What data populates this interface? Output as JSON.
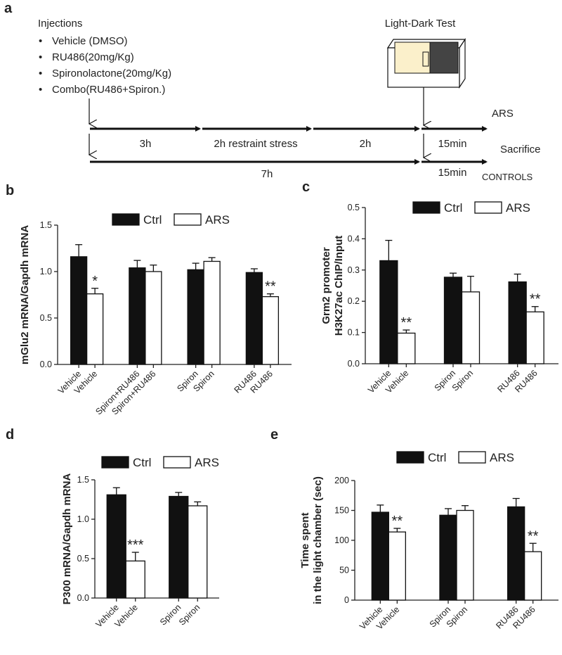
{
  "panel_a": {
    "panel_label": "a",
    "heading": "Injections",
    "items": [
      "Vehicle (DMSO)",
      "RU486(20mg/Kg)",
      "Spironolactone(20mg/Kg)",
      "Combo(RU486+Spiron.)"
    ],
    "test_label": "Light-Dark Test",
    "top_row": {
      "segments": [
        "3h",
        "2h restraint stress",
        "2h",
        "15min"
      ],
      "end_label": "ARS"
    },
    "side_label": "Sacrifice",
    "bottom_row": {
      "segments": [
        "7h",
        "15min"
      ],
      "end_label": "CONTROLS"
    }
  },
  "chart_data": [
    {
      "type": "bar",
      "panel_label": "b",
      "ylabel": [
        "mGlu2 mRNA/Gapdh mRNA"
      ],
      "categories": [
        "Vehicle",
        "Spiron+RU486",
        "Spiron",
        "RU486"
      ],
      "series": [
        {
          "name": "Ctrl",
          "color": "#111111",
          "values": [
            1.16,
            1.04,
            1.02,
            0.99
          ],
          "errors": [
            0.13,
            0.08,
            0.07,
            0.04
          ],
          "significance": [
            null,
            null,
            null,
            null
          ]
        },
        {
          "name": "ARS",
          "color": "#ffffff",
          "values": [
            0.76,
            1.0,
            1.11,
            0.73
          ],
          "errors": [
            0.06,
            0.07,
            0.04,
            0.03
          ],
          "significance": [
            "*",
            null,
            null,
            "**"
          ]
        }
      ],
      "ylim": [
        0,
        1.5
      ],
      "yticks": [
        {
          "value": 0,
          "label": "0.0"
        },
        0.5,
        {
          "value": 1,
          "label": "1.0"
        },
        1.5
      ],
      "legend": "top"
    },
    {
      "type": "bar",
      "panel_label": "c",
      "ylabel": [
        "Grm2 promoter",
        "H3K27ac ChIP/Input"
      ],
      "categories": [
        "Vehicle",
        "Spiron",
        "RU486"
      ],
      "series": [
        {
          "name": "Ctrl",
          "color": "#111111",
          "values": [
            0.33,
            0.277,
            0.262
          ],
          "errors": [
            0.065,
            0.013,
            0.025
          ],
          "significance": [
            null,
            null,
            null
          ]
        },
        {
          "name": "ARS",
          "color": "#ffffff",
          "values": [
            0.098,
            0.23,
            0.166
          ],
          "errors": [
            0.01,
            0.05,
            0.017
          ],
          "significance": [
            "**",
            null,
            "**"
          ]
        }
      ],
      "ylim": [
        0,
        0.5
      ],
      "yticks": [
        {
          "value": 0,
          "label": "0.0"
        },
        0.1,
        0.2,
        0.3,
        0.4,
        0.5
      ],
      "legend": "top"
    },
    {
      "type": "bar",
      "panel_label": "d",
      "ylabel": [
        "P300 mRNA/Gapdh mRNA"
      ],
      "categories": [
        "Vehicle",
        "Spiron"
      ],
      "series": [
        {
          "name": "Ctrl",
          "color": "#111111",
          "values": [
            1.31,
            1.29
          ],
          "errors": [
            0.09,
            0.05
          ],
          "significance": [
            null,
            null
          ]
        },
        {
          "name": "ARS",
          "color": "#ffffff",
          "values": [
            0.47,
            1.17
          ],
          "errors": [
            0.11,
            0.05
          ],
          "significance": [
            "***",
            null
          ]
        }
      ],
      "ylim": [
        0,
        1.5
      ],
      "yticks": [
        {
          "value": 0,
          "label": "0.0"
        },
        0.5,
        {
          "value": 1,
          "label": "1.0"
        },
        1.5
      ],
      "legend": "top"
    },
    {
      "type": "bar",
      "panel_label": "e",
      "ylabel": [
        "Time spent",
        "in the light chamber (sec)"
      ],
      "categories": [
        "Vehicle",
        "Spiron",
        "RU486"
      ],
      "series": [
        {
          "name": "Ctrl",
          "color": "#111111",
          "values": [
            147,
            142,
            156
          ],
          "errors": [
            12,
            11,
            14
          ],
          "significance": [
            null,
            null,
            null
          ]
        },
        {
          "name": "ARS",
          "color": "#ffffff",
          "values": [
            114,
            150,
            81
          ],
          "errors": [
            6,
            8,
            14
          ],
          "significance": [
            "**",
            null,
            "**"
          ]
        }
      ],
      "ylim": [
        0,
        200
      ],
      "yticks": [
        0,
        50,
        100,
        150,
        200
      ],
      "legend": "top"
    }
  ]
}
